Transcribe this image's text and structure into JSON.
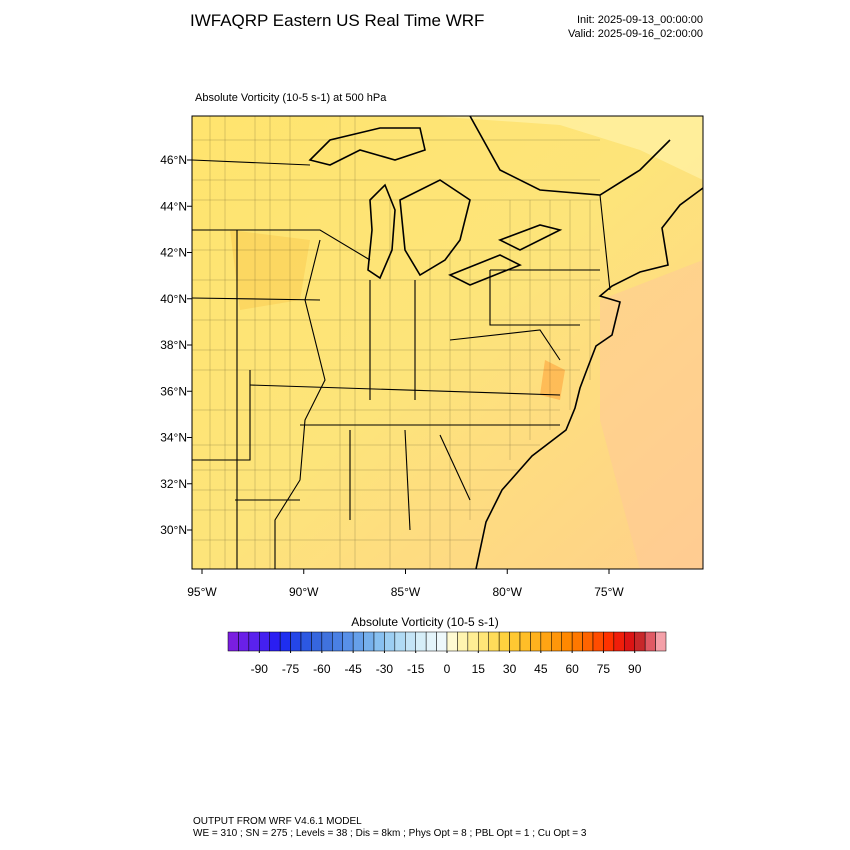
{
  "header": {
    "title": "IWFAQRP Eastern US Real Time WRF",
    "init": "Init: 2025-09-13_00:00:00",
    "valid": "Valid: 2025-09-16_02:00:00"
  },
  "map": {
    "subtitle": "Absolute Vorticity   (10-5 s-1)     at   500 hPa",
    "lat_labels": [
      "46°N",
      "44°N",
      "42°N",
      "40°N",
      "38°N",
      "36°N",
      "34°N",
      "32°N",
      "30°N"
    ],
    "lon_labels": [
      "95°W",
      "90°W",
      "85°W",
      "80°W",
      "75°W"
    ]
  },
  "colorbar": {
    "title": "Absolute Vorticity  (10-5 s-1)",
    "lim": [
      -105,
      105
    ],
    "ticks": [
      -90,
      -75,
      -60,
      -45,
      -30,
      -15,
      0,
      15,
      30,
      45,
      60,
      75,
      90
    ],
    "colors": [
      "#7a1ee0",
      "#6a20e8",
      "#5a22ee",
      "#4420f0",
      "#2a1ef2",
      "#1e2ef0",
      "#2446e8",
      "#2c58e2",
      "#3666de",
      "#4072de",
      "#4a80e4",
      "#5890e8",
      "#66a0ea",
      "#76b0ec",
      "#88c0f0",
      "#9ccef2",
      "#b0daf4",
      "#c4e4f6",
      "#d6eef8",
      "#e4f4fa",
      "#eef8fb",
      "#fffad2",
      "#fff4b0",
      "#ffee94",
      "#ffe678",
      "#ffdc5a",
      "#ffd23e",
      "#ffc832",
      "#ffbe28",
      "#ffb21e",
      "#ffa414",
      "#ff960a",
      "#ff8800",
      "#ff7800",
      "#ff6400",
      "#ff4c00",
      "#ff3200",
      "#f01e0a",
      "#dc1414",
      "#c8282a",
      "#e05a64",
      "#f4a0a8"
    ]
  },
  "footer": {
    "line1": "OUTPUT FROM WRF V4.6.1 MODEL",
    "line2": "WE = 310 ; SN = 275 ; Levels = 38 ; Dis = 8km ; Phys Opt = 8 ; PBL Opt = 1 ; Cu Opt = 3"
  }
}
